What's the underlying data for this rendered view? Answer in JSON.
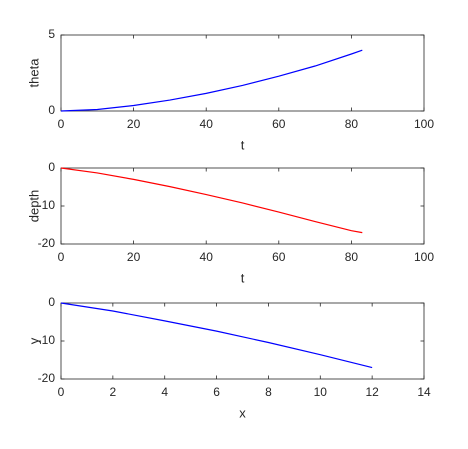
{
  "chart_data": [
    {
      "type": "line",
      "xlabel": "t",
      "ylabel": "theta",
      "x": [
        0,
        10,
        20,
        30,
        40,
        50,
        60,
        70,
        80,
        83
      ],
      "values": [
        0,
        0.1,
        0.36,
        0.72,
        1.16,
        1.68,
        2.29,
        2.96,
        3.75,
        4.0
      ],
      "color": "#0000ff",
      "xlim": [
        0,
        100
      ],
      "xticks": [
        0,
        20,
        40,
        60,
        80,
        100
      ],
      "ylim": [
        0,
        5
      ],
      "yticks": [
        0,
        5
      ]
    },
    {
      "type": "line",
      "xlabel": "t",
      "ylabel": "depth",
      "x": [
        0,
        10,
        20,
        30,
        40,
        50,
        60,
        70,
        80,
        83
      ],
      "values": [
        0,
        -1.3,
        -3,
        -4.9,
        -7,
        -9.2,
        -11.6,
        -14.1,
        -16.5,
        -17
      ],
      "color": "#ff0000",
      "xlim": [
        0,
        100
      ],
      "xticks": [
        0,
        20,
        40,
        60,
        80,
        100
      ],
      "ylim": [
        -20,
        0
      ],
      "yticks": [
        -20,
        -10,
        0
      ]
    },
    {
      "type": "line",
      "xlabel": "x",
      "ylabel": "y",
      "x": [
        0,
        2,
        4,
        6,
        8,
        10,
        12
      ],
      "values": [
        0,
        -2.1,
        -4.7,
        -7.4,
        -10.4,
        -13.6,
        -17
      ],
      "color": "#0000ff",
      "xlim": [
        0,
        14
      ],
      "xticks": [
        0,
        2,
        4,
        6,
        8,
        10,
        12,
        14
      ],
      "ylim": [
        -20,
        0
      ],
      "yticks": [
        -20,
        -10,
        0
      ]
    }
  ]
}
